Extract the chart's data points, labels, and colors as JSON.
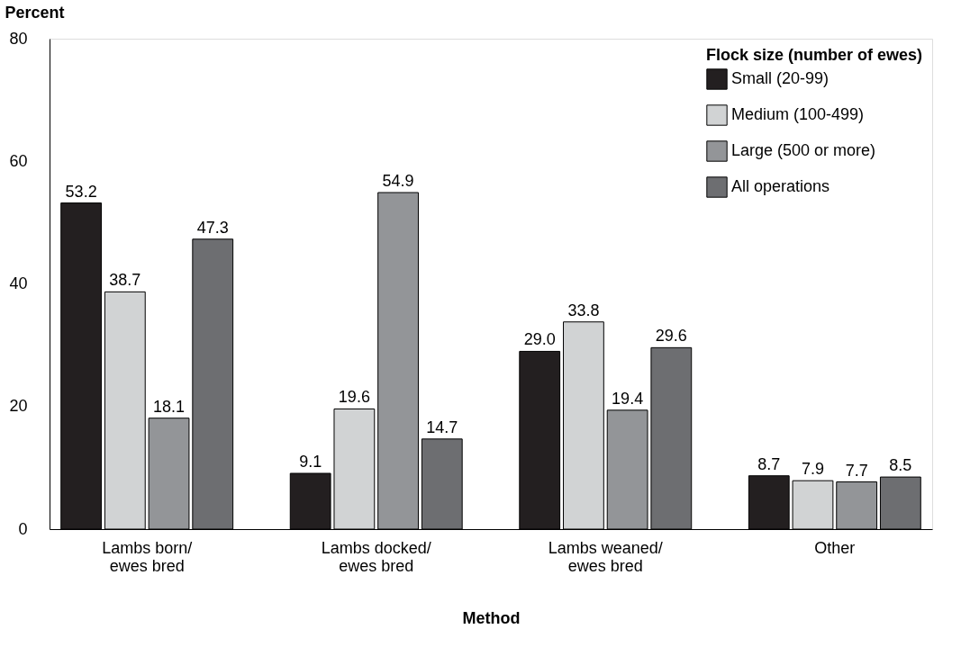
{
  "chart_data": {
    "type": "bar",
    "xlabel": "Method",
    "ylabel": "Percent",
    "legend_title": "Flock size (number of ewes)",
    "categories": [
      "Lambs born/\newes bred",
      "Lambs docked/\newes bred",
      "Lambs weaned/\newes bred",
      "Other"
    ],
    "series": [
      {
        "name": "Small (20-99)",
        "color": "#231f20",
        "values": [
          53.2,
          9.1,
          29.0,
          8.7
        ],
        "value_labels": [
          "53.2",
          "9.1",
          "29.0",
          "8.7"
        ]
      },
      {
        "name": "Medium (100-499)",
        "color": "#d1d3d4",
        "values": [
          38.7,
          19.6,
          33.8,
          7.9
        ],
        "value_labels": [
          "38.7",
          "19.6",
          "33.8",
          "7.9"
        ]
      },
      {
        "name": "Large (500 or more)",
        "color": "#939598",
        "values": [
          18.1,
          54.9,
          19.4,
          7.7
        ],
        "value_labels": [
          "18.1",
          "54.9",
          "19.4",
          "7.7"
        ]
      },
      {
        "name": "All operations",
        "color": "#6d6e71",
        "values": [
          47.3,
          14.7,
          29.6,
          8.5
        ],
        "value_labels": [
          "47.3",
          "14.7",
          "29.6",
          "8.5"
        ]
      }
    ],
    "ylim": [
      0,
      80
    ],
    "yticks": [
      0,
      20,
      40,
      60,
      80
    ],
    "grid": false,
    "legend": "top right"
  }
}
